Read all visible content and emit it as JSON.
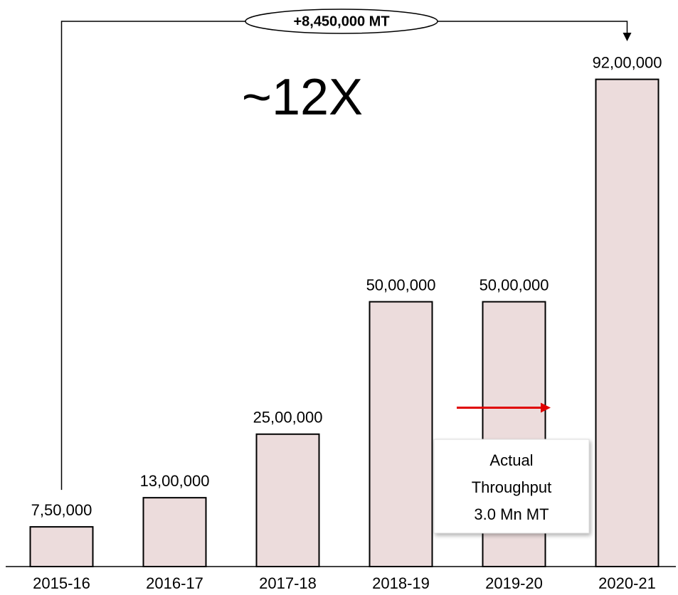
{
  "chart_data": {
    "type": "bar",
    "categories": [
      "2015-16",
      "2016-17",
      "2017-18",
      "2018-19",
      "2019-20",
      "2020-21"
    ],
    "values": [
      750000,
      1300000,
      2500000,
      5000000,
      5000000,
      9200000
    ],
    "value_labels": [
      "7,50,000",
      "13,00,000",
      "25,00,000",
      "50,00,000",
      "50,00,000",
      "92,00,000"
    ],
    "color": "#ecdcdc",
    "ylim": [
      0,
      10000000
    ],
    "growth_label": "+8,450,000 MT",
    "multiple_label": "~12X",
    "actual_throughput": {
      "value": 3000000,
      "label": [
        "Actual",
        "Throughput",
        "3.0 Mn MT"
      ]
    }
  }
}
